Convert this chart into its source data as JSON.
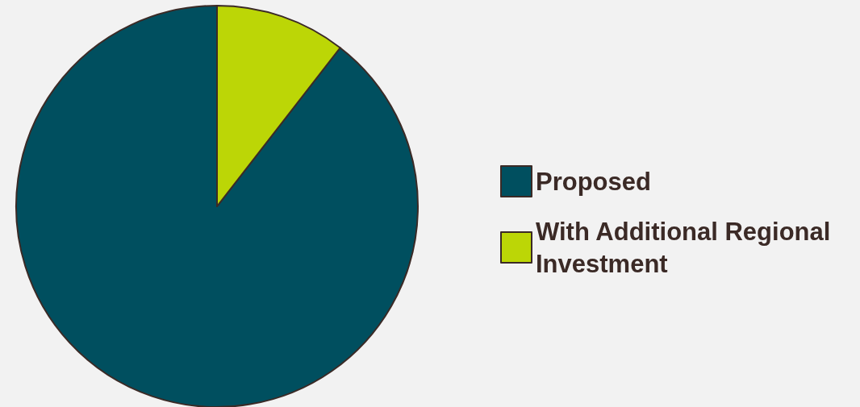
{
  "chart_data": {
    "type": "pie",
    "categories": [
      "Proposed",
      "With Additional Regional Investment"
    ],
    "values": [
      89.5,
      10.5
    ],
    "colors": [
      "#004f5f",
      "#bcd606"
    ],
    "legend": "right"
  }
}
